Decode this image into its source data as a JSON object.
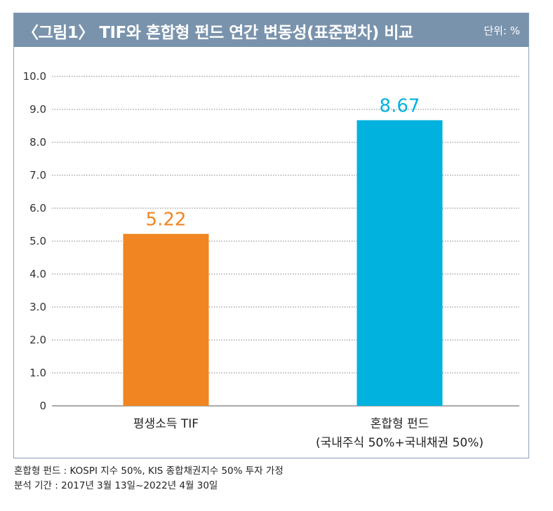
{
  "chart_data": {
    "type": "bar",
    "title": "〈그림1〉 TIF와 혼합형 펀드 연간 변동성(표준편차) 비교",
    "unit_label": "단위: %",
    "categories": [
      {
        "line1": "평생소득 TIF",
        "line2": ""
      },
      {
        "line1": "혼합형 펀드",
        "line2": "(국내주식 50%+국내채권 50%)"
      }
    ],
    "values": [
      5.22,
      8.67
    ],
    "data_labels": [
      "5.22",
      "8.67"
    ],
    "colors": [
      "#f08522",
      "#00b2dd"
    ],
    "ylim": [
      0,
      10
    ],
    "yticks": [
      "0",
      "1.0",
      "2.0",
      "3.0",
      "4.0",
      "5.0",
      "6.0",
      "7.0",
      "8.0",
      "9.0",
      "10.0"
    ],
    "grid": true
  },
  "notes": [
    "혼합형 펀드 : KOSPI 지수 50%, KIS 종합채권지수 50% 투자 가정",
    "분석 기간 : 2017년 3월 13일~2022년 4월 30일"
  ],
  "colors": {
    "header_bg": "#7a93ad",
    "frame_border": "#8aa2bb",
    "grid": "#555555"
  }
}
